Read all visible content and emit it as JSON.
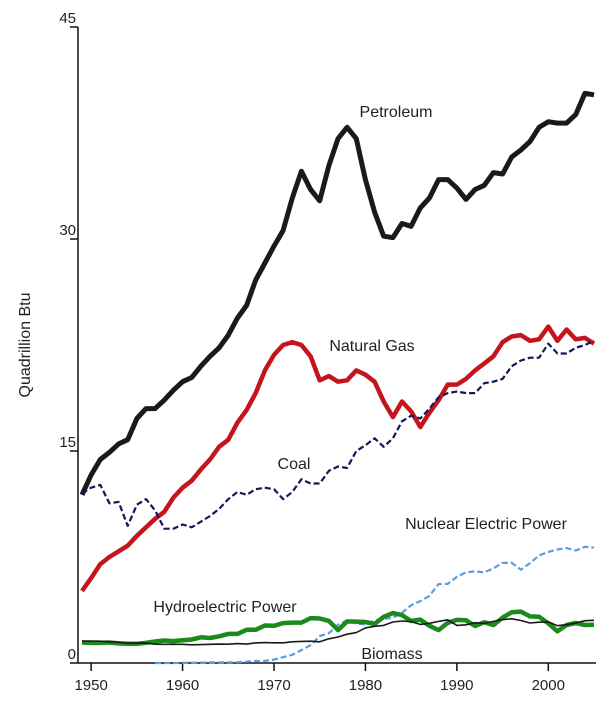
{
  "chart_data": {
    "type": "line",
    "ylabel": "Quadrillion Btu",
    "x": [
      1949,
      1950,
      1951,
      1952,
      1953,
      1954,
      1955,
      1956,
      1957,
      1958,
      1959,
      1960,
      1961,
      1962,
      1963,
      1964,
      1965,
      1966,
      1967,
      1968,
      1969,
      1970,
      1971,
      1972,
      1973,
      1974,
      1975,
      1976,
      1977,
      1978,
      1979,
      1980,
      1981,
      1982,
      1983,
      1984,
      1985,
      1986,
      1987,
      1988,
      1989,
      1990,
      1991,
      1992,
      1993,
      1994,
      1995,
      1996,
      1997,
      1998,
      1999,
      2000,
      2001,
      2002,
      2003,
      2004,
      2005
    ],
    "xlim": [
      1949,
      2005
    ],
    "xticks": [
      1950,
      1960,
      1970,
      1980,
      1990,
      2000
    ],
    "ylim": [
      0,
      45
    ],
    "yticks": [
      0,
      15,
      30,
      45
    ],
    "series": [
      {
        "name": "Petroleum",
        "color": "#1a1a1a",
        "width": 5,
        "dashed": false,
        "values": [
          11.9,
          13.3,
          14.4,
          14.9,
          15.5,
          15.8,
          17.3,
          18.0,
          18.0,
          18.6,
          19.3,
          19.9,
          20.2,
          21.0,
          21.7,
          22.3,
          23.2,
          24.4,
          25.3,
          27.1,
          28.3,
          29.5,
          30.6,
          32.9,
          34.8,
          33.5,
          32.7,
          35.2,
          37.1,
          37.9,
          37.1,
          34.2,
          31.9,
          30.2,
          30.1,
          31.1,
          30.9,
          32.2,
          32.9,
          34.2,
          34.2,
          33.6,
          32.8,
          33.5,
          33.8,
          34.7,
          34.6,
          35.8,
          36.3,
          36.9,
          37.9,
          38.3,
          38.2,
          38.2,
          38.8,
          40.3,
          40.2
        ]
      },
      {
        "name": "Natural Gas",
        "color": "#c4141c",
        "width": 4.5,
        "dashed": false,
        "values": [
          5.1,
          6.0,
          7.0,
          7.5,
          7.9,
          8.3,
          9.0,
          9.6,
          10.2,
          10.7,
          11.7,
          12.4,
          12.9,
          13.7,
          14.4,
          15.3,
          15.8,
          17.0,
          17.9,
          19.1,
          20.7,
          21.8,
          22.5,
          22.7,
          22.5,
          21.7,
          20.0,
          20.3,
          19.9,
          20.0,
          20.7,
          20.4,
          19.9,
          18.5,
          17.4,
          18.5,
          17.8,
          16.7,
          17.7,
          18.6,
          19.7,
          19.7,
          20.1,
          20.7,
          21.2,
          21.7,
          22.7,
          23.1,
          23.2,
          22.8,
          22.9,
          23.8,
          22.8,
          23.6,
          22.9,
          23.0,
          22.6
        ]
      },
      {
        "name": "Coal",
        "color": "#14165a",
        "width": 2.2,
        "dashed": true,
        "values": [
          12.0,
          12.4,
          12.6,
          11.3,
          11.4,
          9.7,
          11.2,
          11.6,
          10.8,
          9.5,
          9.5,
          9.8,
          9.6,
          10.0,
          10.4,
          10.9,
          11.6,
          12.1,
          11.9,
          12.3,
          12.4,
          12.3,
          11.6,
          12.1,
          13.0,
          12.7,
          12.7,
          13.6,
          13.9,
          13.8,
          15.0,
          15.4,
          15.9,
          15.3,
          15.9,
          17.1,
          17.5,
          17.3,
          18.0,
          18.8,
          19.1,
          19.2,
          19.1,
          19.1,
          19.8,
          19.9,
          20.1,
          21.0,
          21.4,
          21.6,
          21.6,
          22.6,
          21.9,
          21.9,
          22.3,
          22.5,
          22.8
        ]
      },
      {
        "name": "Nuclear Electric Power",
        "color": "#5b9be0",
        "width": 2.2,
        "dashed": true,
        "values": [
          null,
          null,
          null,
          null,
          null,
          null,
          null,
          null,
          0.0,
          0.0,
          0.0,
          0.01,
          0.02,
          0.03,
          0.04,
          0.04,
          0.04,
          0.06,
          0.09,
          0.14,
          0.15,
          0.24,
          0.41,
          0.58,
          0.91,
          1.27,
          1.9,
          2.11,
          2.7,
          3.02,
          2.78,
          2.74,
          3.01,
          3.13,
          3.2,
          3.55,
          4.08,
          4.38,
          4.75,
          5.59,
          5.6,
          6.1,
          6.42,
          6.48,
          6.41,
          6.69,
          7.08,
          7.09,
          6.6,
          7.07,
          7.61,
          7.86,
          8.03,
          8.14,
          7.96,
          8.22,
          8.16
        ]
      },
      {
        "name": "Hydroelectric Power",
        "color": "#1a8a1a",
        "width": 4.5,
        "dashed": false,
        "values": [
          1.45,
          1.42,
          1.42,
          1.45,
          1.39,
          1.36,
          1.36,
          1.43,
          1.52,
          1.59,
          1.55,
          1.61,
          1.66,
          1.82,
          1.77,
          1.89,
          2.06,
          2.06,
          2.35,
          2.35,
          2.65,
          2.63,
          2.82,
          2.86,
          2.86,
          3.18,
          3.15,
          2.98,
          2.33,
          2.94,
          2.93,
          2.9,
          2.76,
          3.27,
          3.53,
          3.39,
          2.97,
          3.07,
          2.63,
          2.33,
          2.84,
          3.05,
          3.02,
          2.62,
          2.89,
          2.68,
          3.21,
          3.59,
          3.64,
          3.3,
          3.27,
          2.81,
          2.24,
          2.69,
          2.83,
          2.69,
          2.7
        ]
      },
      {
        "name": "Biomass",
        "color": "#1a1a1a",
        "width": 1.6,
        "dashed": false,
        "values": [
          1.55,
          1.56,
          1.54,
          1.5,
          1.47,
          1.4,
          1.42,
          1.41,
          1.33,
          1.32,
          1.32,
          1.32,
          1.29,
          1.3,
          1.32,
          1.34,
          1.33,
          1.37,
          1.34,
          1.42,
          1.44,
          1.43,
          1.43,
          1.5,
          1.53,
          1.54,
          1.5,
          1.71,
          1.84,
          2.04,
          2.15,
          2.48,
          2.6,
          2.66,
          2.9,
          2.97,
          2.93,
          2.73,
          2.81,
          2.94,
          3.06,
          2.66,
          2.7,
          2.85,
          2.8,
          2.94,
          3.07,
          3.13,
          3.01,
          2.83,
          2.89,
          2.91,
          2.64,
          2.71,
          2.82,
          2.99,
          3.02
        ]
      }
    ]
  }
}
